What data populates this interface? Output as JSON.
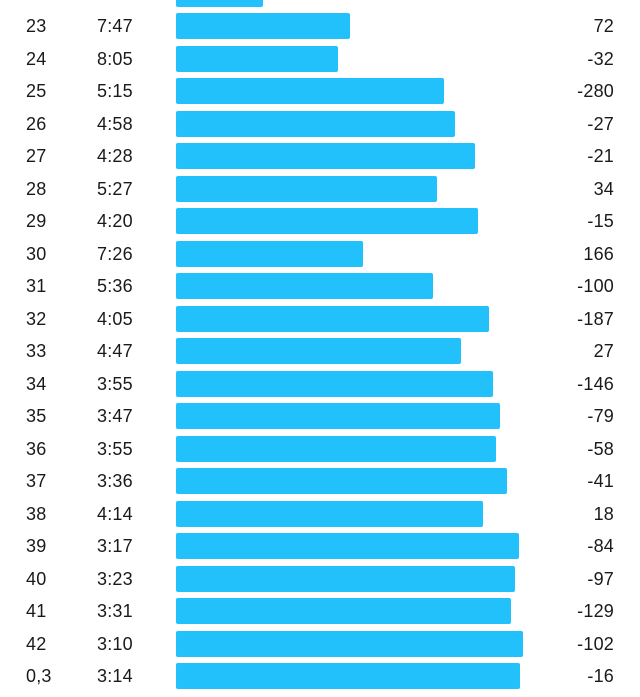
{
  "splits": {
    "partial_top_bar_fraction": 0.25,
    "rows": [
      {
        "km": "23",
        "pace": "7:47",
        "elevation": "72",
        "bar_fraction": 0.5
      },
      {
        "km": "24",
        "pace": "8:05",
        "elevation": "-32",
        "bar_fraction": 0.468
      },
      {
        "km": "25",
        "pace": "5:15",
        "elevation": "-280",
        "bar_fraction": 0.771
      },
      {
        "km": "26",
        "pace": "4:58",
        "elevation": "-27",
        "bar_fraction": 0.803
      },
      {
        "km": "27",
        "pace": "4:28",
        "elevation": "-21",
        "bar_fraction": 0.861
      },
      {
        "km": "28",
        "pace": "5:27",
        "elevation": "34",
        "bar_fraction": 0.751
      },
      {
        "km": "29",
        "pace": "4:20",
        "elevation": "-15",
        "bar_fraction": 0.87
      },
      {
        "km": "30",
        "pace": "7:26",
        "elevation": "166",
        "bar_fraction": 0.538
      },
      {
        "km": "31",
        "pace": "5:36",
        "elevation": "-100",
        "bar_fraction": 0.74
      },
      {
        "km": "32",
        "pace": "4:05",
        "elevation": "-187",
        "bar_fraction": 0.902
      },
      {
        "km": "33",
        "pace": "4:47",
        "elevation": "27",
        "bar_fraction": 0.821
      },
      {
        "km": "34",
        "pace": "3:55",
        "elevation": "-146",
        "bar_fraction": 0.913
      },
      {
        "km": "35",
        "pace": "3:47",
        "elevation": "-79",
        "bar_fraction": 0.933
      },
      {
        "km": "36",
        "pace": "3:55",
        "elevation": "-58",
        "bar_fraction": 0.922
      },
      {
        "km": "37",
        "pace": "3:36",
        "elevation": "-41",
        "bar_fraction": 0.954
      },
      {
        "km": "38",
        "pace": "4:14",
        "elevation": "18",
        "bar_fraction": 0.884
      },
      {
        "km": "39",
        "pace": "3:17",
        "elevation": "-84",
        "bar_fraction": 0.988
      },
      {
        "km": "40",
        "pace": "3:23",
        "elevation": "-97",
        "bar_fraction": 0.977
      },
      {
        "km": "41",
        "pace": "3:31",
        "elevation": "-129",
        "bar_fraction": 0.965
      },
      {
        "km": "42",
        "pace": "3:10",
        "elevation": "-102",
        "bar_fraction": 1.0
      },
      {
        "km": "0,3",
        "pace": "3:14",
        "elevation": "-16",
        "bar_fraction": 0.991
      }
    ]
  },
  "colors": {
    "bar": "#23c1fb",
    "text": "#1a1a1a",
    "background": "#ffffff"
  }
}
